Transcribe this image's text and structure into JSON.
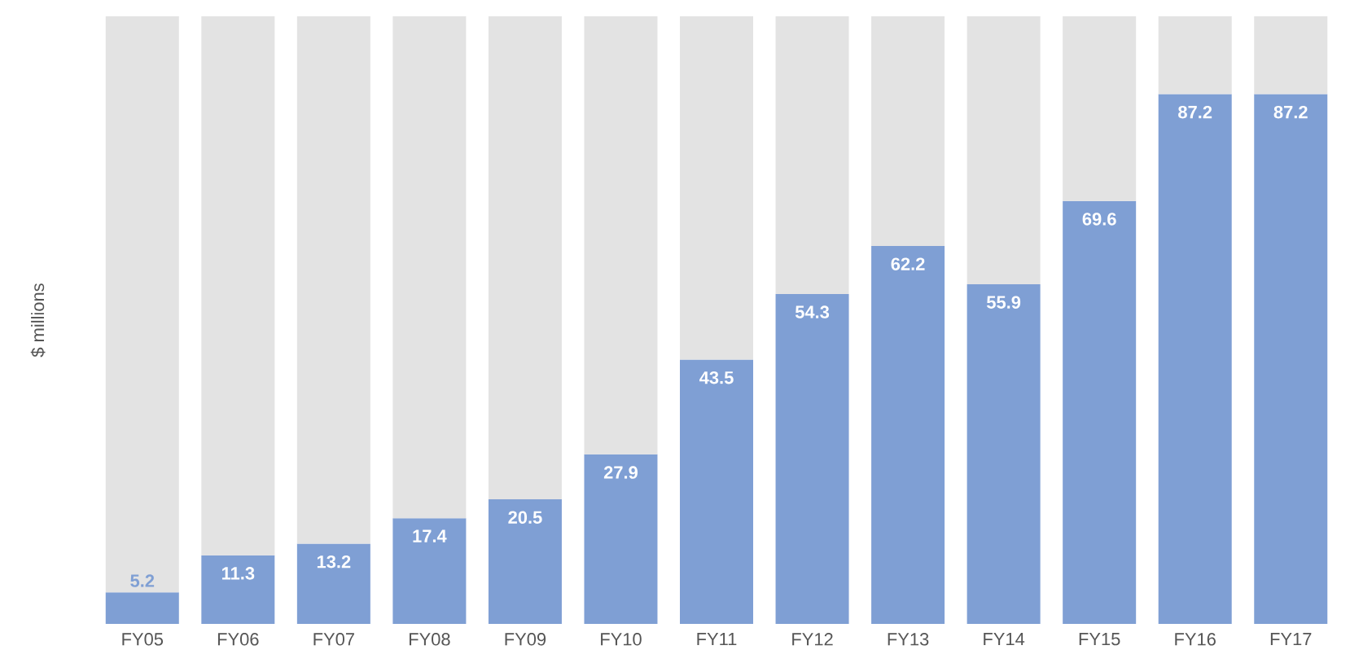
{
  "chart_data": {
    "type": "bar",
    "ylabel": "$ millions",
    "categories": [
      "FY05",
      "FY06",
      "FY07",
      "FY08",
      "FY09",
      "FY10",
      "FY11",
      "FY12",
      "FY13",
      "FY14",
      "FY15",
      "FY16",
      "FY17"
    ],
    "ylim": [
      0,
      100
    ],
    "tick_labels": "x",
    "stacked": true,
    "series": [
      {
        "color": "#7f9fd4",
        "values": [
          5.2,
          11.3,
          13.2,
          17.4,
          20.5,
          27.9,
          43.5,
          54.3,
          62.2,
          55.9,
          69.6,
          87.2,
          87.2
        ],
        "value_labels": [
          "5.2",
          "11.3",
          "13.2",
          "17.4",
          "20.5",
          "27.9",
          "43.5",
          "54.3",
          "62.2",
          "55.9",
          "69.6",
          "87.2",
          "87.2"
        ]
      },
      {
        "color": "#e3e3e3",
        "values": [
          94.8,
          88.7,
          86.8,
          82.6,
          79.5,
          72.1,
          56.5,
          45.7,
          37.8,
          44.1,
          30.4,
          12.8,
          12.8
        ]
      }
    ]
  }
}
